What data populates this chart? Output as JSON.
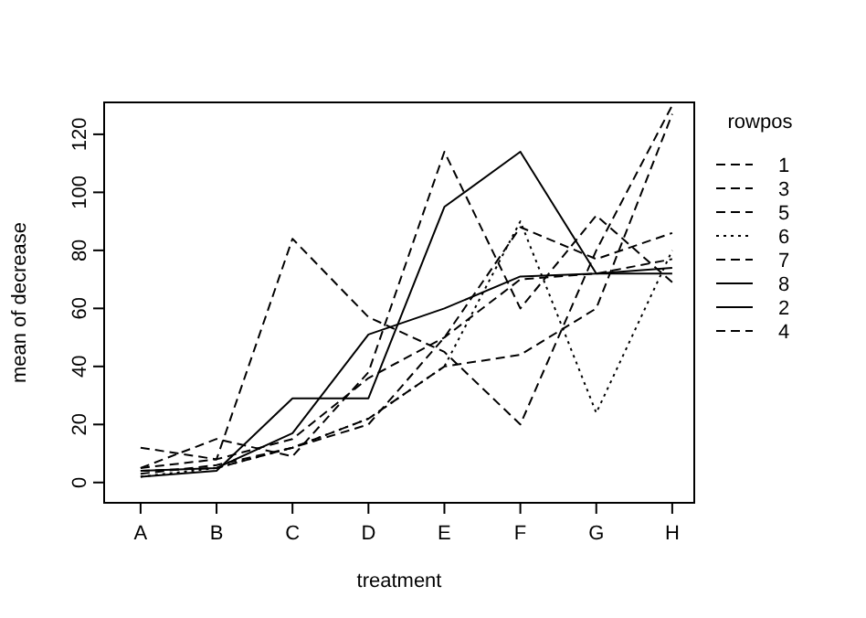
{
  "chart_data": {
    "type": "line",
    "xlabel": "treatment",
    "ylabel": "mean of decrease",
    "legend_title": "rowpos",
    "legend": "top right",
    "grid": false,
    "marker": "none",
    "categories": [
      "A",
      "B",
      "C",
      "D",
      "E",
      "F",
      "G",
      "H"
    ],
    "ylim": [
      -7,
      131
    ],
    "yticks": [
      0,
      20,
      40,
      60,
      80,
      100,
      120
    ],
    "series": [
      {
        "name": "1",
        "color": "#000000",
        "line_style": "dashed",
        "values": [
          12,
          8,
          84,
          57,
          45,
          20,
          80,
          130
        ]
      },
      {
        "name": "3",
        "color": "#000000",
        "line_style": "dashed",
        "values": [
          4,
          5,
          12,
          22,
          40,
          44,
          60,
          127
        ]
      },
      {
        "name": "5",
        "color": "#000000",
        "line_style": "dashed",
        "values": [
          3,
          6,
          12,
          20,
          50,
          88,
          77,
          86
        ]
      },
      {
        "name": "6",
        "color": "#000000",
        "line_style": "dotted",
        "values": [
          2,
          5,
          12,
          22,
          40,
          90,
          24,
          80
        ]
      },
      {
        "name": "7",
        "color": "#000000",
        "line_style": "dashed",
        "values": [
          5,
          8,
          15,
          36,
          50,
          70,
          72,
          77
        ]
      },
      {
        "name": "8",
        "color": "#000000",
        "line_style": "solid",
        "values": [
          4,
          5,
          17,
          51,
          60,
          71,
          72,
          74
        ]
      },
      {
        "name": "2",
        "color": "#000000",
        "line_style": "solid",
        "values": [
          2,
          4,
          29,
          29,
          95,
          114,
          72,
          72
        ]
      },
      {
        "name": "4",
        "color": "#000000",
        "line_style": "dashed",
        "values": [
          5,
          15,
          9,
          38,
          114,
          60,
          92,
          69
        ]
      }
    ]
  }
}
